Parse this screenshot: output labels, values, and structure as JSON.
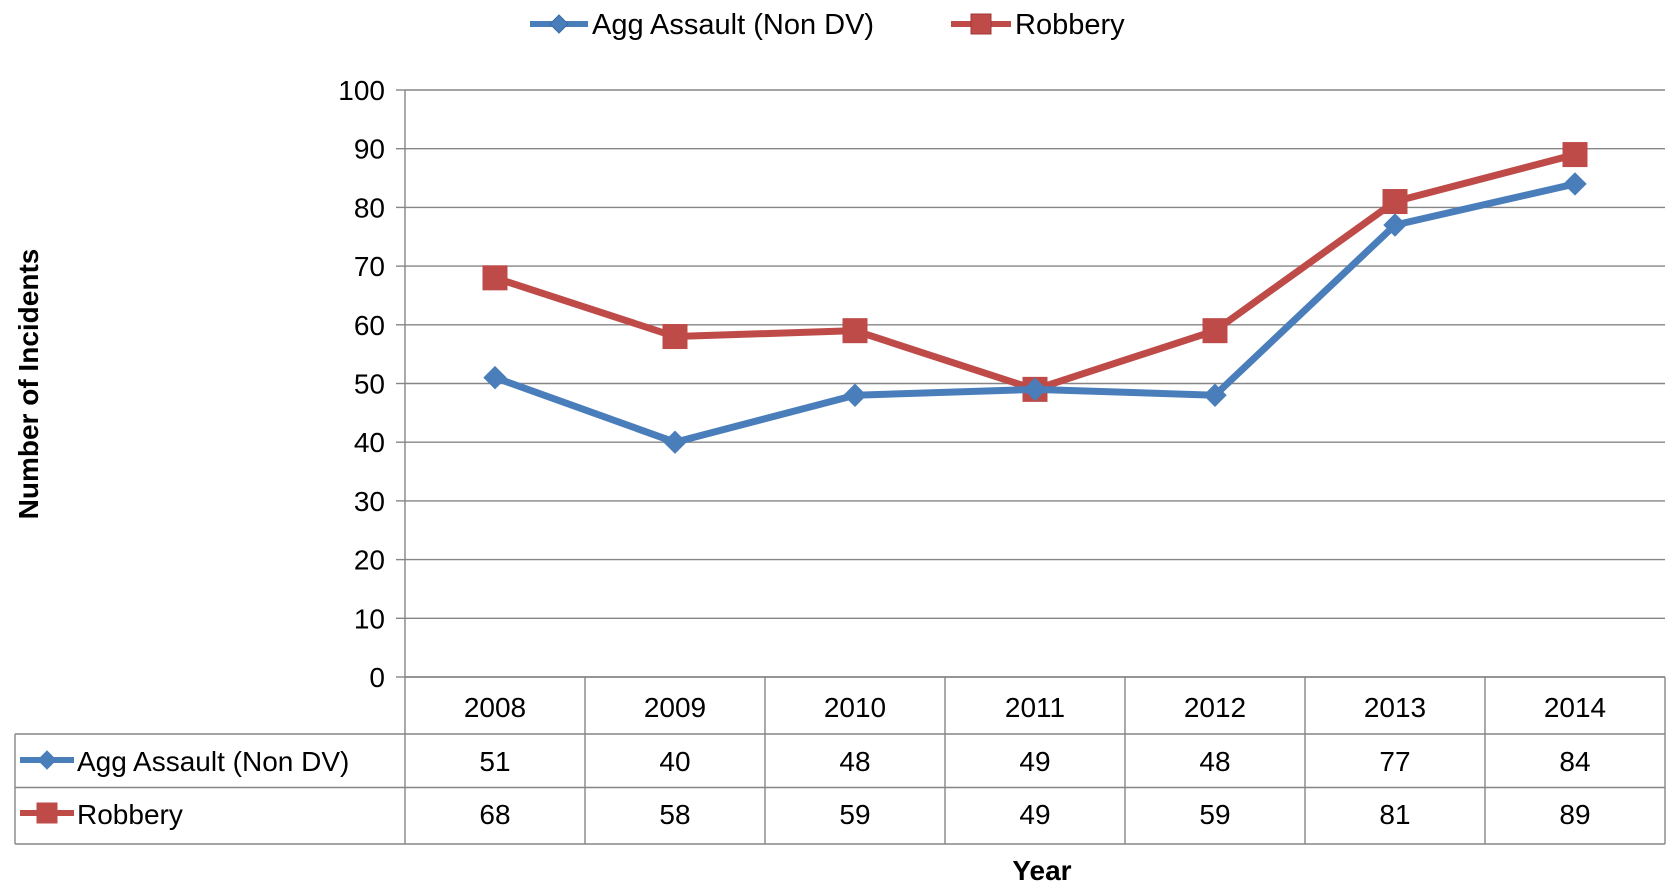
{
  "chart_data": {
    "type": "line",
    "xlabel": "Year",
    "ylabel": "Number of Incidents",
    "categories": [
      "2008",
      "2009",
      "2010",
      "2011",
      "2012",
      "2013",
      "2014"
    ],
    "ylim": [
      0,
      100
    ],
    "yticks": [
      0,
      10,
      20,
      30,
      40,
      50,
      60,
      70,
      80,
      90,
      100
    ],
    "grid": true,
    "legend": "top",
    "data_table": true,
    "series": [
      {
        "name": "Agg Assault (Non DV)",
        "values": [
          51,
          40,
          48,
          49,
          48,
          77,
          84
        ],
        "color": "#4a7ebb",
        "marker": "diamond"
      },
      {
        "name": "Robbery",
        "values": [
          68,
          58,
          59,
          49,
          59,
          81,
          89
        ],
        "color": "#be4b48",
        "marker": "square"
      }
    ]
  }
}
